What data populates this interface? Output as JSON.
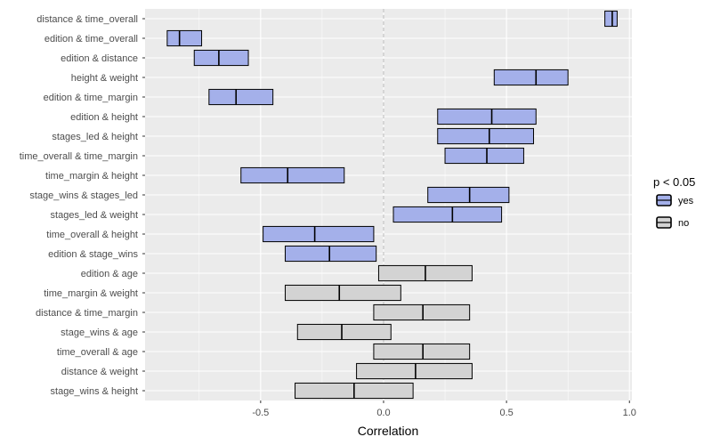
{
  "chart_data": {
    "type": "bar",
    "xlabel": "Correlation",
    "xlim": [
      -0.97,
      1.01
    ],
    "xticks": [
      {
        "value": -0.5,
        "label": "-0.5"
      },
      {
        "value": 0.0,
        "label": "0.0"
      },
      {
        "value": 0.5,
        "label": "0.5"
      },
      {
        "value": 1.0,
        "label": "1.0"
      }
    ],
    "reference_line": 0,
    "grid": true,
    "legend": {
      "title": "p < 0.05",
      "placement": "right",
      "entries": [
        {
          "key": "yes",
          "label": "yes",
          "color": "#a4b0ea"
        },
        {
          "key": "no",
          "label": "no",
          "color": "#d3d3d3"
        }
      ]
    },
    "colors": {
      "panel_bg": "#ebebeb",
      "grid": "#ffffff",
      "reference_line": "#bdbdbd",
      "outline": "#000000"
    },
    "rows": [
      {
        "label": "distance & time_overall",
        "low": 0.9,
        "estimate": 0.93,
        "high": 0.95,
        "sig": "yes"
      },
      {
        "label": "edition & time_overall",
        "low": -0.88,
        "estimate": -0.83,
        "high": -0.74,
        "sig": "yes"
      },
      {
        "label": "edition & distance",
        "low": -0.77,
        "estimate": -0.67,
        "high": -0.55,
        "sig": "yes"
      },
      {
        "label": "height & weight",
        "low": 0.45,
        "estimate": 0.62,
        "high": 0.75,
        "sig": "yes"
      },
      {
        "label": "edition & time_margin",
        "low": -0.71,
        "estimate": -0.6,
        "high": -0.45,
        "sig": "yes"
      },
      {
        "label": "edition & height",
        "low": 0.22,
        "estimate": 0.44,
        "high": 0.62,
        "sig": "yes"
      },
      {
        "label": "stages_led & height",
        "low": 0.22,
        "estimate": 0.43,
        "high": 0.61,
        "sig": "yes"
      },
      {
        "label": "time_overall & time_margin",
        "low": 0.25,
        "estimate": 0.42,
        "high": 0.57,
        "sig": "yes"
      },
      {
        "label": "time_margin & height",
        "low": -0.58,
        "estimate": -0.39,
        "high": -0.16,
        "sig": "yes"
      },
      {
        "label": "stage_wins & stages_led",
        "low": 0.18,
        "estimate": 0.35,
        "high": 0.51,
        "sig": "yes"
      },
      {
        "label": "stages_led & weight",
        "low": 0.04,
        "estimate": 0.28,
        "high": 0.48,
        "sig": "yes"
      },
      {
        "label": "time_overall & height",
        "low": -0.49,
        "estimate": -0.28,
        "high": -0.04,
        "sig": "yes"
      },
      {
        "label": "edition & stage_wins",
        "low": -0.4,
        "estimate": -0.22,
        "high": -0.03,
        "sig": "yes"
      },
      {
        "label": "edition & age",
        "low": -0.02,
        "estimate": 0.17,
        "high": 0.36,
        "sig": "no"
      },
      {
        "label": "time_margin & weight",
        "low": -0.4,
        "estimate": -0.18,
        "high": 0.07,
        "sig": "no"
      },
      {
        "label": "distance & time_margin",
        "low": -0.04,
        "estimate": 0.16,
        "high": 0.35,
        "sig": "no"
      },
      {
        "label": "stage_wins & age",
        "low": -0.35,
        "estimate": -0.17,
        "high": 0.03,
        "sig": "no"
      },
      {
        "label": "time_overall & age",
        "low": -0.04,
        "estimate": 0.16,
        "high": 0.35,
        "sig": "no"
      },
      {
        "label": "distance & weight",
        "low": -0.11,
        "estimate": 0.13,
        "high": 0.36,
        "sig": "no"
      },
      {
        "label": "stage_wins & height",
        "low": -0.36,
        "estimate": -0.12,
        "high": 0.12,
        "sig": "no"
      }
    ]
  }
}
